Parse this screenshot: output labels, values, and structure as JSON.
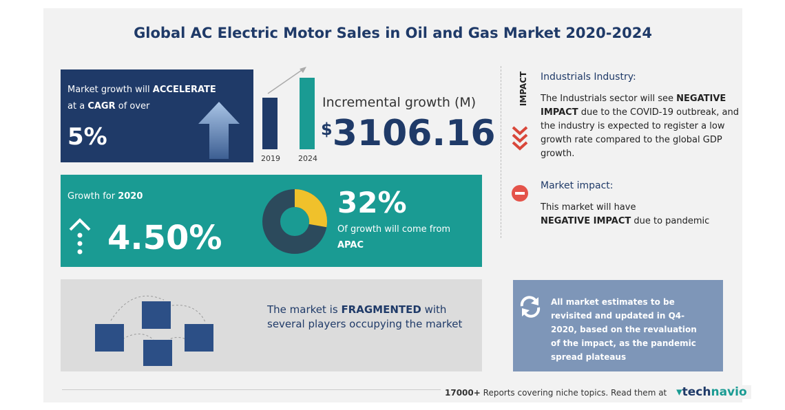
{
  "header": {
    "title": "Global AC Electric Motor Sales in Oil and Gas Market 2020-2024"
  },
  "cagr": {
    "text1": "Market growth will",
    "bold1": "ACCELERATE",
    "text2": "at a",
    "bold2": "CAGR",
    "text3": "of over",
    "value": "5%"
  },
  "incremental": {
    "years": [
      "2019",
      "2024"
    ],
    "label": "Incremental growth (M)",
    "currency": "$",
    "value": "3106.16"
  },
  "growth": {
    "label": "Growth for",
    "year": "2020",
    "value": "4.50%"
  },
  "region": {
    "value": "32%",
    "text": "Of growth will come from",
    "name": "APAC"
  },
  "market": {
    "text1": "The market is",
    "bold": "FRAGMENTED",
    "text2": "with several players occupying the market"
  },
  "impact": {
    "label": "IMPACT",
    "industry_title": "Industrials Industry:",
    "industry_text1": "The Industrials sector will see",
    "industry_bold": "NEGATIVE IMPACT",
    "industry_text2": "due to the COVID-19 outbreak, and the industry is expected to register a low growth rate compared to the global GDP growth.",
    "market_title": "Market impact:",
    "market_text1": "This market will have",
    "market_bold": "NEGATIVE IMPACT",
    "market_text2": "due to pandemic"
  },
  "note": "All market estimates to be revisited and updated in Q4-2020, based on the revaluation of the impact, as the pandemic spread plateaus",
  "footer": {
    "count": "17000+",
    "text": "Reports covering niche topics. Read them at",
    "brand1": "tech",
    "brand2": "navio"
  }
}
